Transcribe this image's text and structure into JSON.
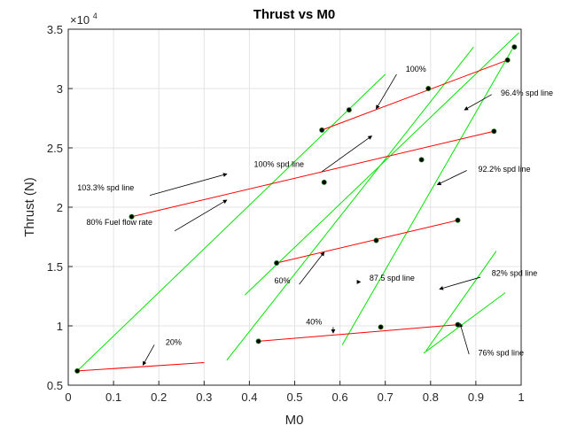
{
  "chart_data": {
    "type": "line",
    "title": "Thrust vs M0",
    "xlabel": "M0",
    "ylabel": "Thrust (N)",
    "y_exponent_label": "×10",
    "y_exponent_power": "4",
    "xlim": [
      0,
      1
    ],
    "ylim": [
      5000,
      35000
    ],
    "x_ticks": [
      0,
      0.1,
      0.2,
      0.3,
      0.4,
      0.5,
      0.6,
      0.7,
      0.8,
      0.9,
      1
    ],
    "x_tick_labels": [
      "0",
      "0.1",
      "0.2",
      "0.3",
      "0.4",
      "0.5",
      "0.6",
      "0.7",
      "0.8",
      "0.9",
      "1"
    ],
    "y_ticks": [
      5000,
      10000,
      15000,
      20000,
      25000,
      30000,
      35000
    ],
    "y_tick_labels": [
      "0.5",
      "1",
      "1.5",
      "2",
      "2.5",
      "3",
      "3.5"
    ],
    "grid": true,
    "colors": {
      "speed_lines": "#00e600",
      "fuel_flow_lines": "#ff0000",
      "points": "#000000"
    },
    "speed_lines": [
      {
        "x": [
          0.02,
          0.7
        ],
        "y": [
          6200,
          31200
        ]
      },
      {
        "x": [
          0.35,
          0.895
        ],
        "y": [
          7100,
          33500
        ]
      },
      {
        "x": [
          0.39,
          0.995
        ],
        "y": [
          12600,
          34700
        ]
      },
      {
        "x": [
          0.605,
          0.98
        ],
        "y": [
          8400,
          33300
        ]
      },
      {
        "x": [
          0.79,
          0.945
        ],
        "y": [
          7900,
          16300
        ]
      },
      {
        "x": [
          0.785,
          0.965
        ],
        "y": [
          7700,
          12800
        ]
      }
    ],
    "fuel_flow_lines": [
      {
        "x": [
          0.02,
          0.3
        ],
        "y": [
          6200,
          6900
        ]
      },
      {
        "x": [
          0.42,
          0.86
        ],
        "y": [
          8700,
          10100
        ]
      },
      {
        "x": [
          0.46,
          0.86
        ],
        "y": [
          15300,
          18900
        ]
      },
      {
        "x": [
          0.14,
          0.94
        ],
        "y": [
          19200,
          26400
        ]
      },
      {
        "x": [
          0.56,
          0.97
        ],
        "y": [
          26500,
          32400
        ]
      }
    ],
    "points": {
      "x": [
        0.02,
        0.42,
        0.69,
        0.86,
        0.46,
        0.68,
        0.86,
        0.14,
        0.565,
        0.78,
        0.94,
        0.56,
        0.62,
        0.795,
        0.97,
        0.985
      ],
      "y": [
        6200,
        8700,
        9900,
        10100,
        15300,
        17200,
        18900,
        19200,
        22100,
        24000,
        26400,
        26500,
        28200,
        30000,
        32400,
        33500
      ]
    },
    "annotations": [
      {
        "text": "20%",
        "text_x": 0.215,
        "text_y": 8400,
        "elbow_x": 0.19,
        "elbow_y": 8400,
        "arrow_x": 0.165,
        "arrow_y": 6700
      },
      {
        "text": "40%",
        "text_x": 0.525,
        "text_y": 10100,
        "elbow_x": 0.585,
        "elbow_y": 9900,
        "arrow_x": 0.585,
        "arrow_y": 9400
      },
      {
        "text": "60%",
        "text_x": 0.455,
        "text_y": 13600,
        "elbow_x": 0.51,
        "elbow_y": 13500,
        "arrow_x": 0.565,
        "arrow_y": 16200
      },
      {
        "text": "80% Fuel flow rate",
        "text_x": 0.04,
        "text_y": 18500,
        "elbow_x": 0.235,
        "elbow_y": 18000,
        "arrow_x": 0.35,
        "arrow_y": 20600
      },
      {
        "text": "103.3% spd line",
        "text_x": 0.02,
        "text_y": 21400,
        "elbow_x": 0.18,
        "elbow_y": 21000,
        "arrow_x": 0.35,
        "arrow_y": 22800
      },
      {
        "text": "100% spd line",
        "text_x": 0.41,
        "text_y": 23400,
        "elbow_x": 0.56,
        "elbow_y": 23000,
        "arrow_x": 0.67,
        "arrow_y": 26000
      },
      {
        "text": "100%",
        "text_x": 0.745,
        "text_y": 31400,
        "elbow_x": 0.725,
        "elbow_y": 31200,
        "arrow_x": 0.68,
        "arrow_y": 28300
      },
      {
        "text": "87.5 spd line",
        "text_x": 0.665,
        "text_y": 13800,
        "elbow_x": 0.645,
        "elbow_y": 13700,
        "arrow_x": 0.645,
        "arrow_y": 13700
      },
      {
        "text": "96.4% spd line",
        "text_x": 0.955,
        "text_y": 29400,
        "elbow_x": 0.935,
        "elbow_y": 29500,
        "arrow_x": 0.875,
        "arrow_y": 28200
      },
      {
        "text": "92.2% spd line",
        "text_x": 0.905,
        "text_y": 23000,
        "elbow_x": 0.88,
        "elbow_y": 23100,
        "arrow_x": 0.815,
        "arrow_y": 21900
      },
      {
        "text": "82% spd line",
        "text_x": 0.935,
        "text_y": 14200,
        "elbow_x": 0.91,
        "elbow_y": 14100,
        "arrow_x": 0.82,
        "arrow_y": 13100
      },
      {
        "text": "76% spd line",
        "text_x": 0.905,
        "text_y": 7500,
        "elbow_x": 0.885,
        "elbow_y": 7600,
        "arrow_x": 0.865,
        "arrow_y": 10200
      }
    ]
  }
}
